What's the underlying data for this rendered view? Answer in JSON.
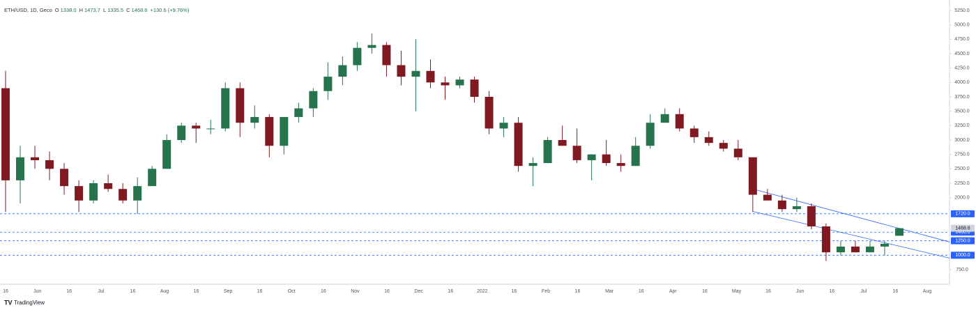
{
  "chart_data": {
    "type": "candlestick",
    "header": {
      "symbol": "ETH/USD, 1D, Geco",
      "ohlc": [
        {
          "label": "O",
          "value": "1338.0"
        },
        {
          "label": "H",
          "value": "1473.7"
        },
        {
          "label": "L",
          "value": "1335.5"
        },
        {
          "label": "C",
          "value": "1468.6"
        }
      ],
      "change": "+130.6 (+9.76%)"
    },
    "ylim": [
      750,
      5250
    ],
    "yticks": [
      {
        "value": 750,
        "label": "750.0"
      },
      {
        "value": 2000,
        "label": "2000.0"
      },
      {
        "value": 2250,
        "label": "2250.0"
      },
      {
        "value": 2500,
        "label": "2500.0"
      },
      {
        "value": 2750,
        "label": "2750.0"
      },
      {
        "value": 3000,
        "label": "3000.0"
      },
      {
        "value": 3250,
        "label": "3250.0"
      },
      {
        "value": 3500,
        "label": "3500.0"
      },
      {
        "value": 3750,
        "label": "3750.0"
      },
      {
        "value": 4000,
        "label": "4000.0"
      },
      {
        "value": 4250,
        "label": "4250.0"
      },
      {
        "value": 4500,
        "label": "4500.0"
      },
      {
        "value": 4750,
        "label": "4750.0"
      },
      {
        "value": 5000,
        "label": "5000.0"
      },
      {
        "value": 5250,
        "label": "5250.0"
      }
    ],
    "xticks": [
      "16",
      "Jun",
      "16",
      "Jul",
      "16",
      "Aug",
      "16",
      "Sep",
      "16",
      "Oct",
      "16",
      "Nov",
      "16",
      "Dec",
      "16",
      "2022",
      "16",
      "Feb",
      "16",
      "Mar",
      "16",
      "Apr",
      "16",
      "May",
      "16",
      "Jun",
      "16",
      "Jul",
      "16",
      "Aug"
    ],
    "up_color": "#26734d",
    "down_color": "#801922",
    "open": [
      3900,
      2300,
      2700,
      2650,
      2500,
      2200,
      1950,
      2250,
      2150,
      1950,
      2200,
      2500,
      3000,
      3250,
      3200,
      3200,
      3900,
      3300,
      3400,
      2900,
      3400,
      3550,
      3850,
      4100,
      4300,
      4600,
      4650,
      4300,
      4100,
      4200,
      4000,
      3950,
      4050,
      3750,
      3200,
      3300,
      2550,
      2600,
      3000,
      2900,
      2650,
      2750,
      2600,
      2550,
      2900,
      3300,
      3450,
      3200,
      3050,
      2950,
      2850,
      2700,
      2050,
      1950,
      1800,
      1850,
      1500,
      1050,
      1150,
      1050,
      1150,
      1338
    ],
    "high": [
      4200,
      2900,
      2900,
      2800,
      2600,
      2300,
      2300,
      2400,
      2250,
      2350,
      2550,
      3100,
      3300,
      3300,
      3350,
      4000,
      4000,
      3600,
      3450,
      3400,
      3650,
      3900,
      4350,
      4450,
      4700,
      4850,
      4700,
      4550,
      4750,
      4400,
      4100,
      4100,
      4100,
      3850,
      3400,
      3400,
      2700,
      3050,
      3250,
      3200,
      2750,
      3000,
      2750,
      3050,
      3450,
      3550,
      3550,
      3250,
      3150,
      3000,
      3000,
      2700,
      2150,
      2050,
      2000,
      1900,
      1550,
      1250,
      1250,
      1250,
      1250,
      1473.7
    ],
    "low": [
      1750,
      1900,
      2500,
      2300,
      2050,
      1750,
      1900,
      2100,
      1900,
      1720,
      2200,
      2500,
      2950,
      2950,
      3100,
      3150,
      3050,
      3200,
      2700,
      2750,
      3300,
      3400,
      3700,
      3950,
      4200,
      4500,
      4100,
      3950,
      3500,
      3900,
      3700,
      3900,
      3650,
      3100,
      3050,
      2450,
      2200,
      2600,
      2900,
      2600,
      2300,
      2550,
      2450,
      2550,
      2850,
      3300,
      3150,
      2950,
      2900,
      2800,
      2650,
      1750,
      1950,
      1750,
      1750,
      1450,
      900,
      1000,
      1050,
      1050,
      1000,
      1335.5
    ],
    "close": [
      2300,
      2700,
      2650,
      2500,
      2200,
      1950,
      2250,
      2150,
      1950,
      2200,
      2500,
      3000,
      3250,
      3200,
      3200,
      3900,
      3300,
      3400,
      2900,
      3400,
      3550,
      3850,
      4100,
      4300,
      4600,
      4650,
      4300,
      4100,
      4200,
      4000,
      3950,
      4050,
      3750,
      3200,
      3300,
      2550,
      2600,
      3000,
      2900,
      2650,
      2750,
      2600,
      2550,
      2900,
      3300,
      3450,
      3200,
      3050,
      2950,
      2850,
      2700,
      2050,
      1950,
      1800,
      1850,
      1500,
      1050,
      1150,
      1050,
      1150,
      1200,
      1468.6
    ],
    "levels": [
      {
        "value": 1720,
        "label": "1720.0"
      },
      {
        "value": 1400,
        "label": "1400.0"
      },
      {
        "value": 1250,
        "label": "1250.0"
      },
      {
        "value": 1000,
        "label": "1000.0"
      }
    ],
    "level_color": "#2962ff",
    "last_price": {
      "value": 1468.6,
      "label": "1468.6"
    },
    "trendlines": [
      {
        "start": 2150,
        "end": 1230
      },
      {
        "start": 1760,
        "end": 950
      }
    ],
    "trendline_start_index": 51,
    "brand": "TradingView"
  }
}
